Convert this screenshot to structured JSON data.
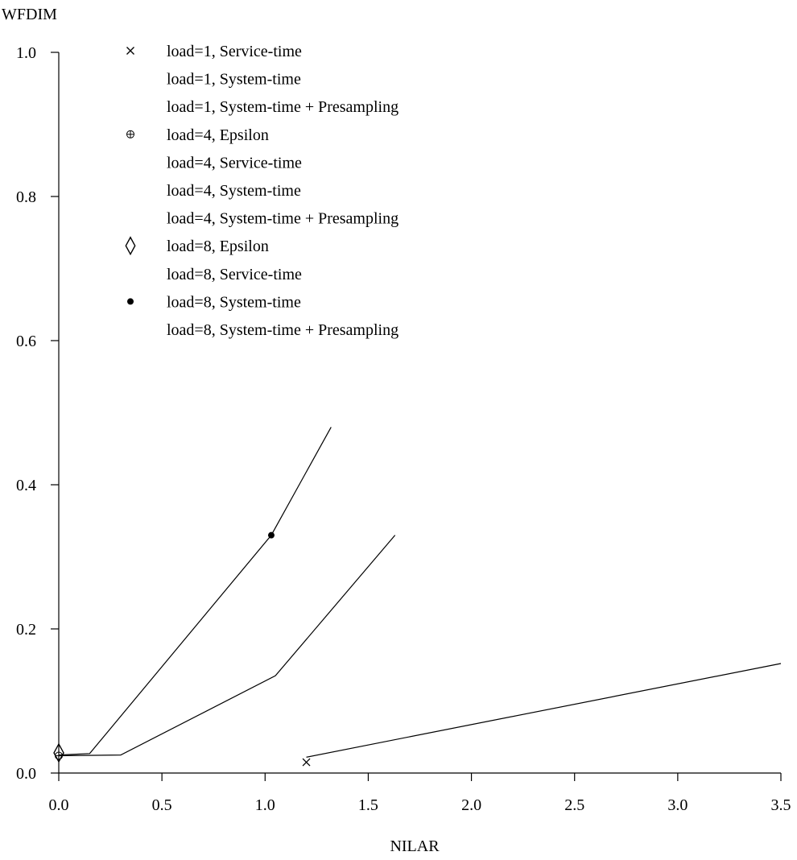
{
  "chart_data": {
    "type": "line",
    "title": "",
    "xlabel": "NILAR",
    "ylabel": "WFDIM",
    "xlim": [
      0.0,
      3.5
    ],
    "ylim": [
      0.0,
      1.0
    ],
    "xticks": [
      "0.0",
      "0.5",
      "1.0",
      "1.5",
      "2.0",
      "2.5",
      "3.0",
      "3.5"
    ],
    "yticks": [
      "0.0",
      "0.2",
      "0.4",
      "0.6",
      "0.8",
      "1.0"
    ],
    "grid": false,
    "legend_position": "top-left",
    "legend": [
      {
        "label": "load=1, Service-time",
        "marker": "×"
      },
      {
        "label": "load=1, System-time",
        "marker": ""
      },
      {
        "label": "load=1, System-time + Presampling",
        "marker": ""
      },
      {
        "label": "load=4, Epsilon",
        "marker": "⊕"
      },
      {
        "label": "load=4, Service-time",
        "marker": ""
      },
      {
        "label": "load=4, System-time",
        "marker": ""
      },
      {
        "label": "load=4, System-time + Presampling",
        "marker": ""
      },
      {
        "label": "load=8, Epsilon",
        "marker": "◊"
      },
      {
        "label": "load=8, Service-time",
        "marker": ""
      },
      {
        "label": "load=8, System-time",
        "marker": "•"
      },
      {
        "label": "load=8, System-time + Presampling",
        "marker": ""
      }
    ],
    "lines": [
      {
        "points": [
          [
            1.2,
            0.022
          ],
          [
            3.5,
            0.152
          ]
        ]
      },
      {
        "points": [
          [
            0.0,
            0.024
          ],
          [
            0.3,
            0.025
          ],
          [
            1.05,
            0.135
          ],
          [
            1.63,
            0.33
          ]
        ]
      },
      {
        "points": [
          [
            0.0,
            0.025
          ],
          [
            0.15,
            0.027
          ],
          [
            1.03,
            0.33
          ],
          [
            1.32,
            0.48
          ]
        ]
      }
    ],
    "markers": [
      {
        "symbol": "×",
        "x": 1.2,
        "y": 0.015
      },
      {
        "symbol": "•",
        "x": 1.03,
        "y": 0.33
      },
      {
        "symbol": "◊",
        "x": 0.0,
        "y": 0.028
      },
      {
        "symbol": "⊕",
        "x": 0.0,
        "y": 0.024
      }
    ]
  }
}
